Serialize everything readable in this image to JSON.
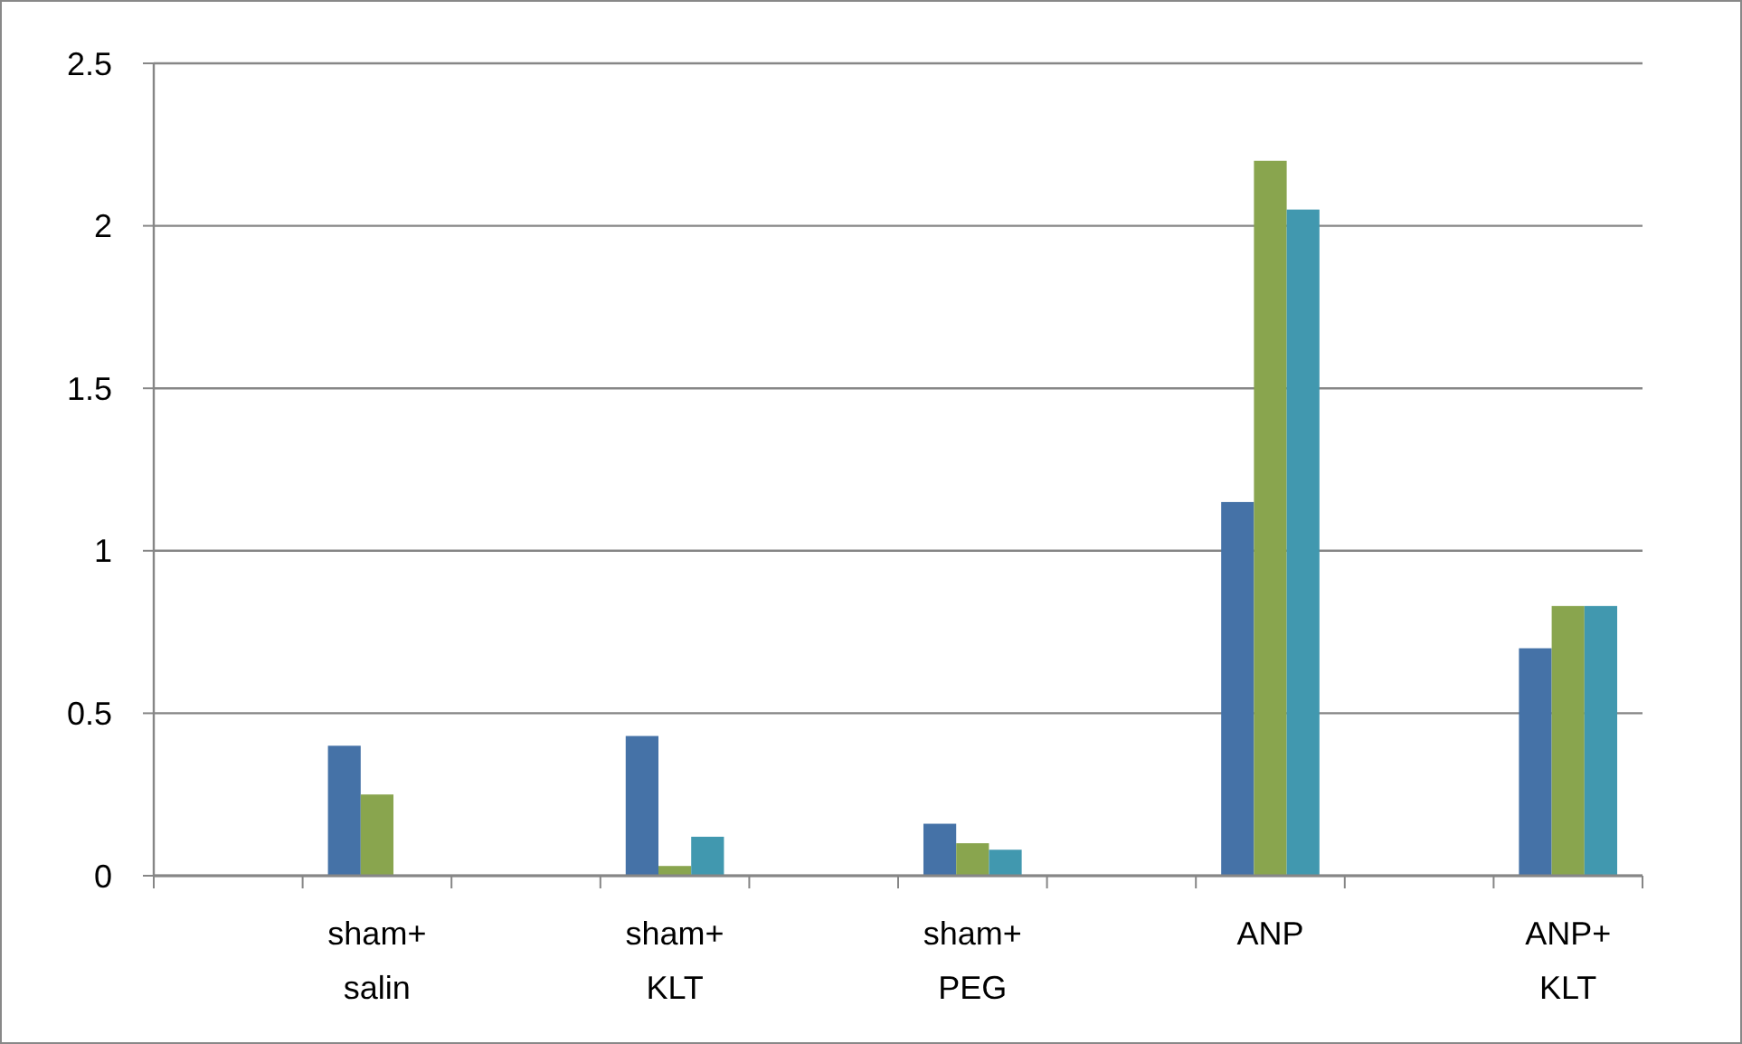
{
  "chart_data": {
    "type": "bar",
    "categories": [
      null,
      "sham+ salin",
      null,
      "sham+ KLT",
      null,
      "sham+ PEG",
      null,
      "ANP",
      null,
      "ANP+ KLT"
    ],
    "series": [
      {
        "color": "#4572a7",
        "values": [
          null,
          0.4,
          null,
          0.43,
          null,
          0.16,
          null,
          1.15,
          null,
          0.7
        ]
      },
      {
        "color": "#89a54e",
        "values": [
          null,
          0.25,
          null,
          0.03,
          null,
          0.1,
          null,
          2.2,
          null,
          0.83
        ]
      },
      {
        "color": "#4198af",
        "values": [
          null,
          null,
          null,
          0.12,
          null,
          0.08,
          null,
          2.05,
          null,
          0.83
        ]
      }
    ],
    "ylim": [
      0,
      2.5
    ],
    "yticks": [
      0,
      0.5,
      1,
      1.5,
      2,
      2.5
    ],
    "grid": "y"
  }
}
